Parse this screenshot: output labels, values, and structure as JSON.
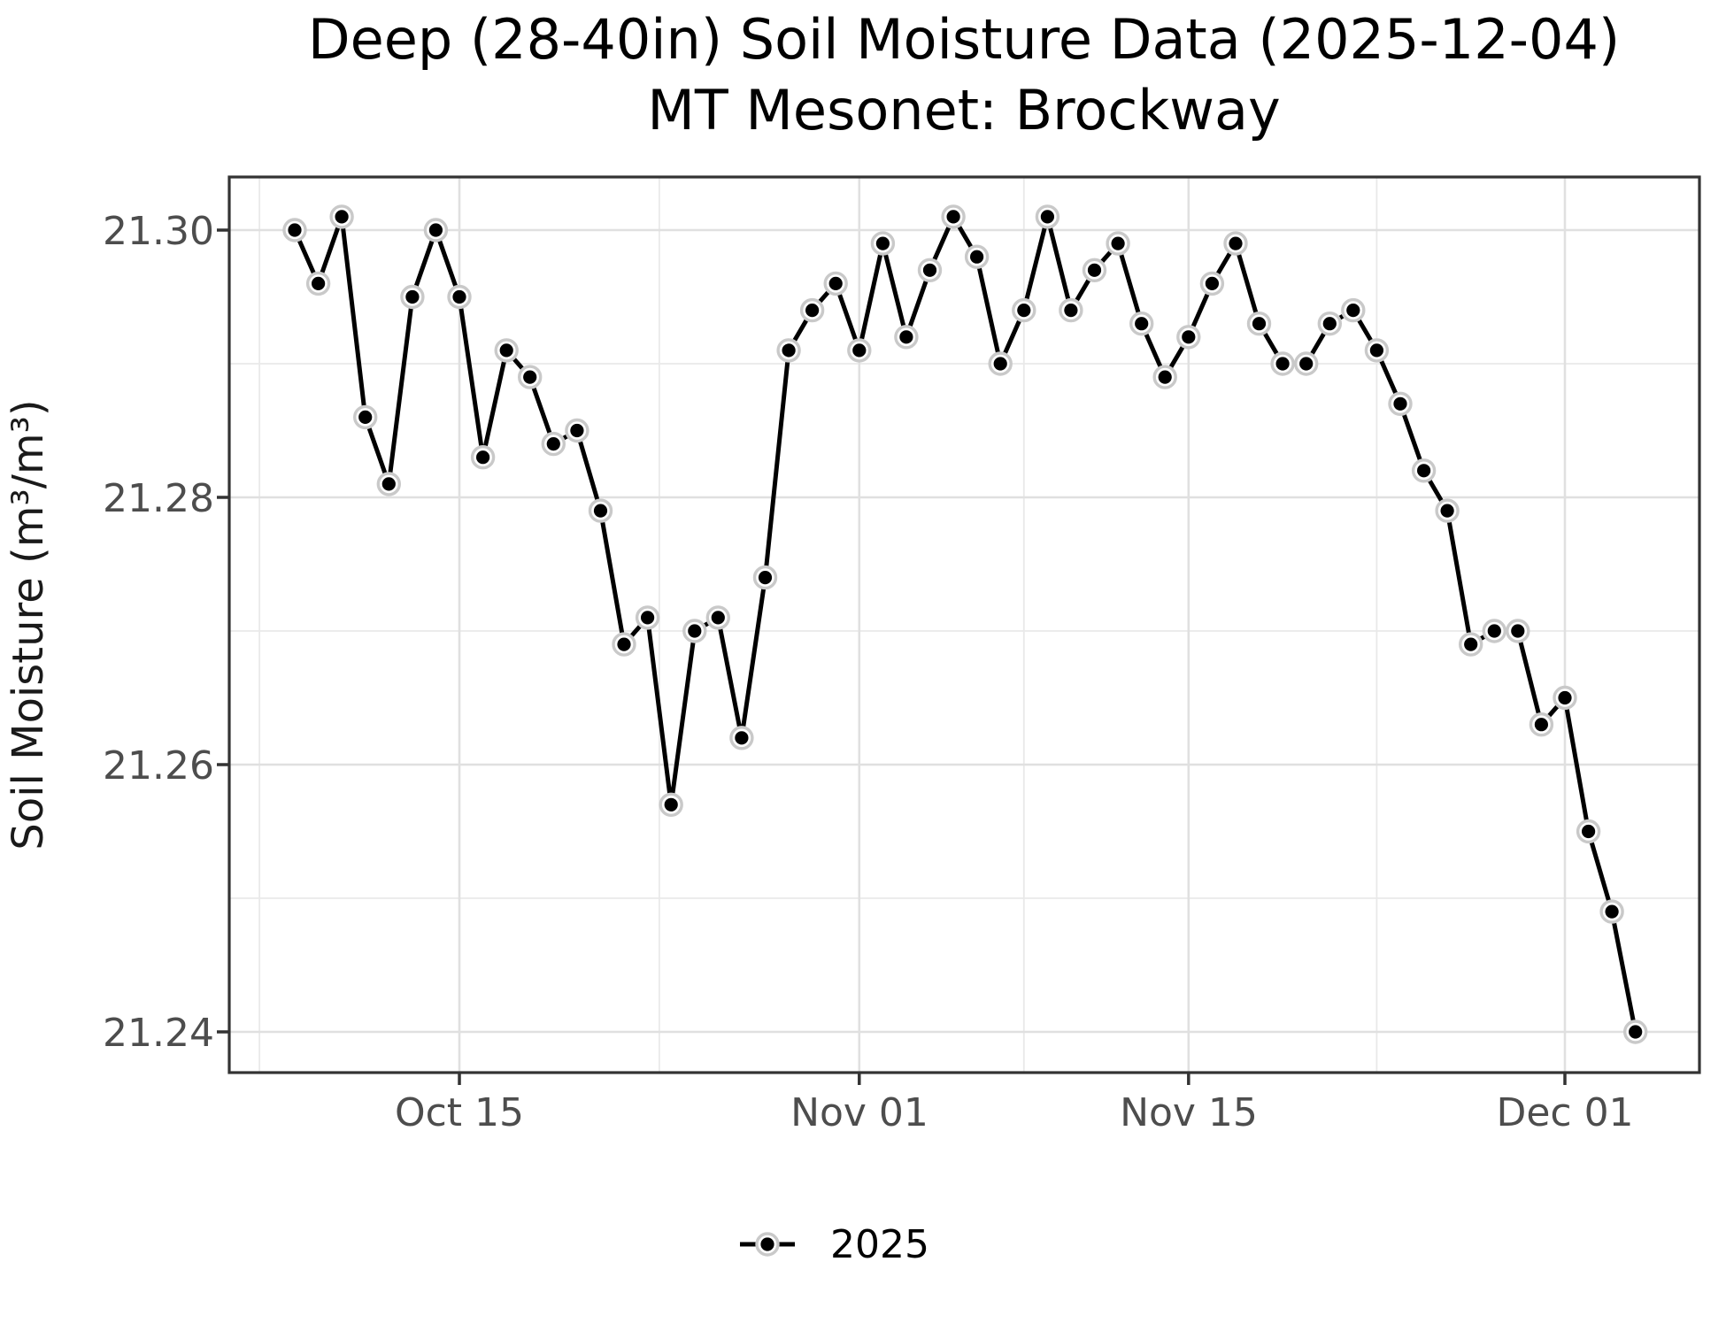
{
  "header": {
    "title_line1": "Deep (28-40in) Soil Moisture Data (2025-12-04)",
    "title_line2": "MT Mesonet: Brockway"
  },
  "y_axis": {
    "label": "Soil Moisture (m³/m³)",
    "tick_labels": [
      "21.30",
      "21.28",
      "21.26",
      "21.24"
    ],
    "tick_values": [
      21.3,
      21.28,
      21.26,
      21.24
    ],
    "minor_values": [
      21.29,
      21.27,
      21.25
    ]
  },
  "x_axis": {
    "tick_labels": [
      "Oct 15",
      "Nov 01",
      "Nov 15",
      "Dec 01"
    ],
    "tick_days": [
      7,
      24,
      38,
      54
    ]
  },
  "legend": {
    "series_label": "2025",
    "position": "bottom"
  },
  "colors": {
    "line": "#000000",
    "point": "#000000",
    "point_halo": "#c9c9c9",
    "grid_major": "#e0e0e0",
    "grid_minor": "#e9e9e9",
    "panel_border": "#333333",
    "tick_mark": "#333333",
    "tick_text": "#4d4d4d"
  },
  "chart_data": {
    "type": "line",
    "title": "Deep (28-40in) Soil Moisture Data (2025-12-04)",
    "subtitle": "MT Mesonet: Brockway",
    "xlabel": "",
    "ylabel": "Soil Moisture (m³/m³)",
    "legend_position": "bottom",
    "grid": true,
    "ylim": [
      21.237,
      21.304
    ],
    "x_range": [
      "2025-10-08",
      "2025-12-04"
    ],
    "y_tick_values": [
      21.3,
      21.28,
      21.26,
      21.24
    ],
    "x_tick_labels": [
      "Oct 15",
      "Nov 01",
      "Nov 15",
      "Dec 01"
    ],
    "series": [
      {
        "name": "2025",
        "dates": [
          "2025-10-08",
          "2025-10-09",
          "2025-10-10",
          "2025-10-11",
          "2025-10-12",
          "2025-10-13",
          "2025-10-14",
          "2025-10-15",
          "2025-10-16",
          "2025-10-17",
          "2025-10-18",
          "2025-10-19",
          "2025-10-20",
          "2025-10-21",
          "2025-10-22",
          "2025-10-23",
          "2025-10-24",
          "2025-10-25",
          "2025-10-26",
          "2025-10-27",
          "2025-10-28",
          "2025-10-29",
          "2025-10-30",
          "2025-10-31",
          "2025-11-01",
          "2025-11-02",
          "2025-11-03",
          "2025-11-04",
          "2025-11-05",
          "2025-11-06",
          "2025-11-07",
          "2025-11-08",
          "2025-11-09",
          "2025-11-10",
          "2025-11-11",
          "2025-11-12",
          "2025-11-13",
          "2025-11-14",
          "2025-11-15",
          "2025-11-16",
          "2025-11-17",
          "2025-11-18",
          "2025-11-19",
          "2025-11-20",
          "2025-11-21",
          "2025-11-22",
          "2025-11-23",
          "2025-11-24",
          "2025-11-25",
          "2025-11-26",
          "2025-11-27",
          "2025-11-28",
          "2025-11-29",
          "2025-11-30",
          "2025-12-01",
          "2025-12-02",
          "2025-12-03",
          "2025-12-04"
        ],
        "values": [
          21.3,
          21.296,
          21.301,
          21.286,
          21.281,
          21.295,
          21.3,
          21.295,
          21.283,
          21.291,
          21.289,
          21.284,
          21.285,
          21.279,
          21.269,
          21.271,
          21.257,
          21.27,
          21.271,
          21.262,
          21.274,
          21.291,
          21.294,
          21.296,
          21.291,
          21.299,
          21.292,
          21.297,
          21.301,
          21.298,
          21.29,
          21.294,
          21.301,
          21.294,
          21.297,
          21.299,
          21.293,
          21.289,
          21.292,
          21.296,
          21.299,
          21.293,
          21.29,
          21.29,
          21.293,
          21.294,
          21.291,
          21.287,
          21.282,
          21.279,
          21.269,
          21.27,
          21.27,
          21.263,
          21.265,
          21.255,
          21.249,
          21.24
        ]
      }
    ]
  }
}
